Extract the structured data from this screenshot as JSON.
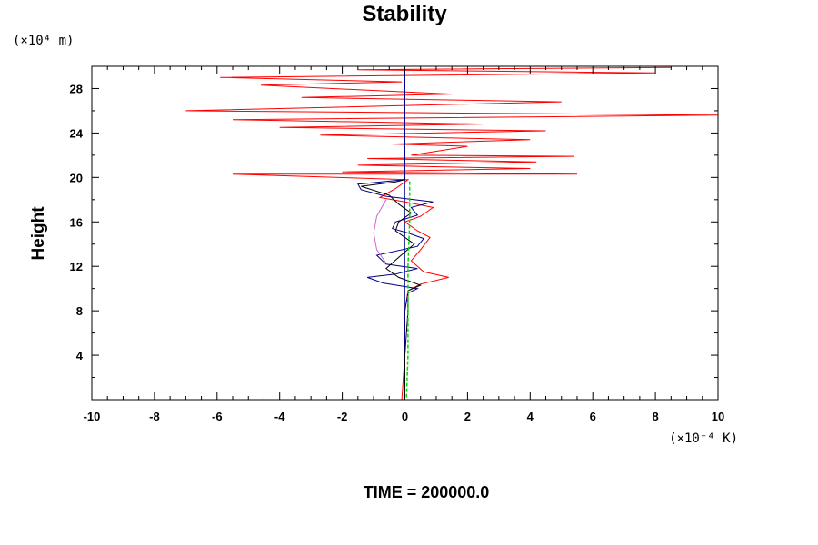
{
  "chart_data": {
    "type": "line",
    "title": "Stability",
    "ylabel": "Height",
    "y_unit": "(×10⁴ m)",
    "x_unit": "(×10⁻⁴ K)",
    "footer": "TIME = 200000.0",
    "xlim": [
      -10,
      10
    ],
    "ylim": [
      0,
      30
    ],
    "x_ticks": [
      "-10",
      "-8",
      "-6",
      "-4",
      "-2",
      "0",
      "2",
      "4",
      "6",
      "8",
      "10"
    ],
    "y_ticks": [
      "4",
      "8",
      "12",
      "16",
      "20",
      "24",
      "28"
    ],
    "series": [
      {
        "color": "#ff0000",
        "points": [
          [
            -0.1,
            0
          ],
          [
            0,
            4
          ],
          [
            0,
            8
          ],
          [
            0.1,
            9.8
          ],
          [
            0.5,
            10.4
          ],
          [
            1.4,
            11
          ],
          [
            0.6,
            11.5
          ],
          [
            0.2,
            12.5
          ],
          [
            0.5,
            13.5
          ],
          [
            0.8,
            14.6
          ],
          [
            0.4,
            15.2
          ],
          [
            0,
            16
          ],
          [
            0.5,
            16.5
          ],
          [
            0.9,
            17.3
          ],
          [
            0,
            17.8
          ],
          [
            -0.8,
            18.2
          ],
          [
            -0.3,
            19
          ],
          [
            0.1,
            19.8
          ],
          [
            -5.5,
            20.3
          ],
          [
            5.5,
            20.3
          ],
          [
            -2,
            20.5
          ],
          [
            4,
            20.8
          ],
          [
            -1.5,
            21.1
          ],
          [
            4.2,
            21.4
          ],
          [
            -1.2,
            21.7
          ],
          [
            5.4,
            21.9
          ],
          [
            0.2,
            22
          ],
          [
            2,
            22.8
          ],
          [
            -0.4,
            23
          ],
          [
            4,
            23.4
          ],
          [
            -2.7,
            23.8
          ],
          [
            4.5,
            24.2
          ],
          [
            -4,
            24.5
          ],
          [
            2.5,
            24.8
          ],
          [
            -5.5,
            25.2
          ],
          [
            10,
            25.6
          ],
          [
            -7,
            26
          ],
          [
            5,
            26.8
          ],
          [
            -3.3,
            27.2
          ],
          [
            1.5,
            27.5
          ],
          [
            -4.6,
            28.3
          ],
          [
            -0.1,
            28.6
          ],
          [
            -5.9,
            29
          ],
          [
            8,
            29.4
          ],
          [
            -1.5,
            29.7
          ],
          [
            8.5,
            29.9
          ]
        ]
      },
      {
        "color": "#00008b",
        "points": [
          [
            0,
            0
          ],
          [
            0,
            4
          ],
          [
            0,
            8
          ],
          [
            0.1,
            9.6
          ],
          [
            0.4,
            10
          ],
          [
            -0.7,
            10.5
          ],
          [
            -1.2,
            11
          ],
          [
            -0.3,
            11.3
          ],
          [
            0.4,
            11.8
          ],
          [
            -0.6,
            12.2
          ],
          [
            -0.9,
            13
          ],
          [
            0.4,
            13.8
          ],
          [
            0.6,
            14.5
          ],
          [
            0.1,
            15
          ],
          [
            -0.4,
            15.4
          ],
          [
            -0.3,
            16
          ],
          [
            0.4,
            16.6
          ],
          [
            0.2,
            17.3
          ],
          [
            0.9,
            17.8
          ],
          [
            -0.6,
            18.3
          ],
          [
            -1.4,
            18.9
          ],
          [
            -1.5,
            19.4
          ],
          [
            0,
            19.8
          ],
          [
            0,
            30
          ]
        ]
      },
      {
        "color": "#000000",
        "points": [
          [
            0,
            0
          ],
          [
            0,
            4
          ],
          [
            0.1,
            8
          ],
          [
            0.1,
            9.8
          ],
          [
            0.5,
            10.3
          ],
          [
            -0.2,
            11
          ],
          [
            -0.6,
            11.8
          ],
          [
            -0.2,
            12.8
          ],
          [
            0.3,
            14
          ],
          [
            -0.3,
            15.2
          ],
          [
            -0.2,
            16
          ],
          [
            0.2,
            16.8
          ],
          [
            -0.2,
            17.6
          ],
          [
            -0.5,
            18.4
          ],
          [
            -1.4,
            19.2
          ],
          [
            -0.3,
            19.6
          ],
          [
            0,
            19.8
          ]
        ]
      },
      {
        "color": "#cc66cc",
        "points": [
          [
            -0.6,
            12.3
          ],
          [
            -0.9,
            13.5
          ],
          [
            -1,
            15
          ],
          [
            -0.9,
            16.5
          ],
          [
            -0.6,
            18
          ]
        ]
      },
      {
        "color": "#00dd00",
        "points": [
          [
            0.05,
            0.2
          ],
          [
            0.1,
            4
          ],
          [
            0.1,
            8
          ],
          [
            0.1,
            12
          ],
          [
            0.15,
            16
          ],
          [
            0.15,
            19.8
          ]
        ]
      }
    ]
  }
}
